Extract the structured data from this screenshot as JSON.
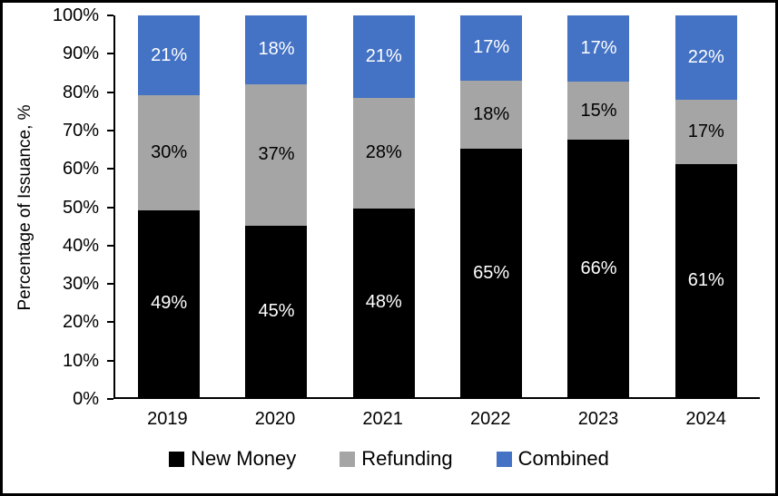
{
  "chart_data": {
    "type": "bar",
    "stacked": true,
    "title": "",
    "ylabel": "Percentage of Issuance, %",
    "xlabel": "",
    "ylim": [
      0,
      100
    ],
    "grid": false,
    "legend_position": "bottom",
    "categories": [
      "2019",
      "2020",
      "2021",
      "2022",
      "2023",
      "2024"
    ],
    "yticks": [
      "0%",
      "10%",
      "20%",
      "30%",
      "40%",
      "50%",
      "60%",
      "70%",
      "80%",
      "90%",
      "100%"
    ],
    "series": [
      {
        "name": "New Money",
        "color": "#000000",
        "label_color": "#ffffff",
        "values": [
          49,
          45,
          48,
          65,
          66,
          61
        ]
      },
      {
        "name": "Refunding",
        "color": "#a5a5a5",
        "label_color": "#000000",
        "values": [
          30,
          37,
          28,
          18,
          15,
          17
        ]
      },
      {
        "name": "Combined",
        "color": "#4472c4",
        "label_color": "#ffffff",
        "values": [
          21,
          18,
          21,
          17,
          17,
          22
        ]
      }
    ],
    "value_suffix": "%"
  }
}
